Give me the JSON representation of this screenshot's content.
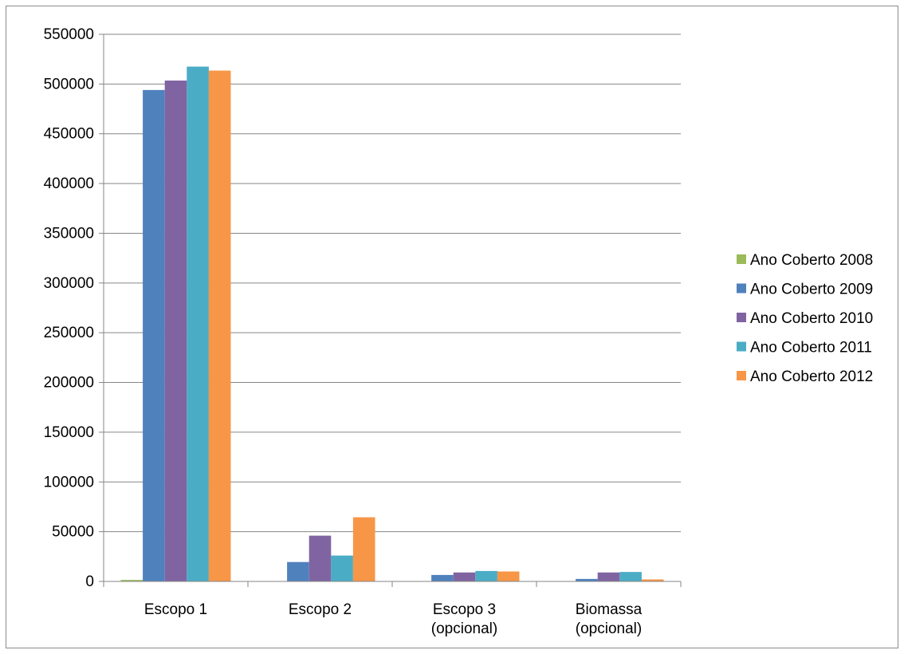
{
  "chart_data": {
    "type": "bar",
    "title": "",
    "xlabel": "",
    "ylabel": "",
    "categories": [
      [
        "Escopo 1"
      ],
      [
        "Escopo 2"
      ],
      [
        "Escopo 3",
        "(opcional)"
      ],
      [
        "Biomassa",
        "(opcional)"
      ]
    ],
    "ylim": [
      0,
      550000
    ],
    "yticks": [
      0,
      50000,
      100000,
      150000,
      200000,
      250000,
      300000,
      350000,
      400000,
      450000,
      500000,
      550000
    ],
    "grid": true,
    "legend_position": "right",
    "series": [
      {
        "name": "Ano Coberto 2008",
        "color": "#9bbb59",
        "values": [
          1500,
          0,
          0,
          0
        ]
      },
      {
        "name": "Ano Coberto 2009",
        "color": "#4f81bd",
        "values": [
          494000,
          19500,
          6500,
          2500
        ]
      },
      {
        "name": "Ano Coberto 2010",
        "color": "#8064a2",
        "values": [
          503500,
          46000,
          9000,
          9000
        ]
      },
      {
        "name": "Ano Coberto 2011",
        "color": "#4bacc6",
        "values": [
          517500,
          26000,
          10500,
          9500
        ]
      },
      {
        "name": "Ano Coberto 2012",
        "color": "#f79646",
        "values": [
          513500,
          64500,
          10000,
          2000
        ]
      }
    ]
  }
}
